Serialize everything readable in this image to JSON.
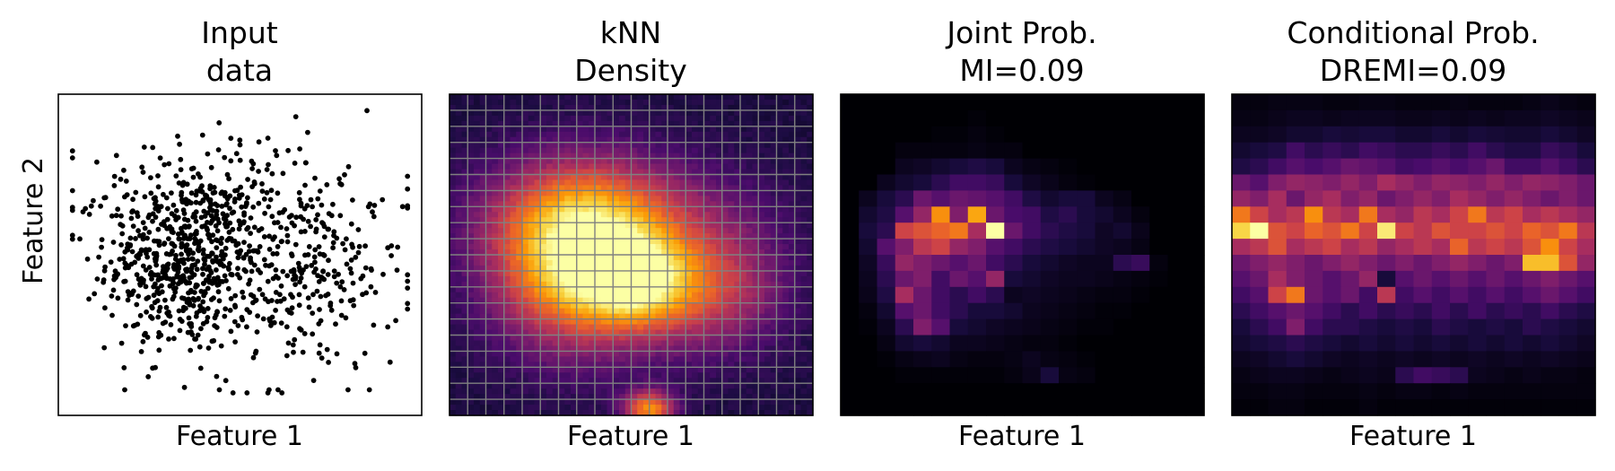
{
  "figure": {
    "y_axis_label": "Feature 2",
    "colormap": [
      "#000004",
      "#1b0c41",
      "#4a0c6b",
      "#781c6d",
      "#a52c60",
      "#cf4446",
      "#ed6925",
      "#fb9b06",
      "#f7d13d",
      "#fcffa4"
    ],
    "grid_color": "#808080"
  },
  "chart_data": [
    {
      "type": "scatter",
      "title_lines": [
        "Input",
        "data"
      ],
      "xlabel": "Feature 1",
      "ylabel": "Feature 2",
      "grid": false,
      "ticks": false,
      "point_color": "#000000",
      "point_count": 1000,
      "xlim": [
        0,
        100
      ],
      "ylim": [
        0,
        100
      ],
      "clusters": [
        {
          "weight": 0.6,
          "center": [
            34,
            48
          ],
          "spread": [
            11,
            15
          ]
        },
        {
          "weight": 0.25,
          "center": [
            68,
            42
          ],
          "spread": [
            14,
            15
          ]
        },
        {
          "weight": 0.15,
          "center": [
            50,
            68
          ],
          "spread": [
            22,
            12
          ]
        }
      ],
      "highlight_points": [
        [
          44,
          93
        ],
        [
          66,
          95
        ],
        [
          58,
          88
        ],
        [
          95,
          45
        ],
        [
          93,
          15
        ],
        [
          5,
          64
        ],
        [
          48,
          5
        ],
        [
          52,
          5
        ],
        [
          58,
          5
        ],
        [
          62,
          5
        ]
      ]
    },
    {
      "type": "heatmap",
      "title_lines": [
        "kNN",
        "Density"
      ],
      "xlabel": "Feature 1",
      "grid": true,
      "grid_cells": 20,
      "resolution": 60,
      "values_max": 1.0,
      "density_blobs": [
        {
          "center": [
            0.35,
            0.48
          ],
          "spread": [
            0.16,
            0.18
          ],
          "amplitude": 0.95
        },
        {
          "center": [
            0.52,
            0.42
          ],
          "spread": [
            0.1,
            0.1
          ],
          "amplitude": 0.55
        },
        {
          "center": [
            0.72,
            0.4
          ],
          "spread": [
            0.14,
            0.14
          ],
          "amplitude": 0.45
        },
        {
          "center": [
            0.45,
            0.65
          ],
          "spread": [
            0.25,
            0.12
          ],
          "amplitude": 0.3
        },
        {
          "center": [
            0.55,
            0.02
          ],
          "spread": [
            0.05,
            0.04
          ],
          "amplitude": 0.7
        }
      ],
      "background_level": 0.12
    },
    {
      "type": "heatmap",
      "title_lines": [
        "Joint Prob.",
        "MI=0.09"
      ],
      "xlabel": "Feature 1",
      "grid": false,
      "grid_cells": 20,
      "values_max": 1.0,
      "values": [
        [
          0.0,
          0.0,
          0.0,
          0.0,
          0.0,
          0.0,
          0.0,
          0.0,
          0.0,
          0.0,
          0.0,
          0.0,
          0.0,
          0.0,
          0.0,
          0.0,
          0.0,
          0.0,
          0.0,
          0.0
        ],
        [
          0.0,
          0.0,
          0.0,
          0.0,
          0.0,
          0.0,
          0.0,
          0.01,
          0.0,
          0.0,
          0.0,
          0.0,
          0.0,
          0.0,
          0.0,
          0.0,
          0.0,
          0.0,
          0.0,
          0.0
        ],
        [
          0.0,
          0.0,
          0.0,
          0.0,
          0.0,
          0.01,
          0.01,
          0.02,
          0.01,
          0.0,
          0.0,
          0.0,
          0.0,
          0.0,
          0.0,
          0.0,
          0.0,
          0.0,
          0.0,
          0.0
        ],
        [
          0.0,
          0.0,
          0.0,
          0.02,
          0.02,
          0.02,
          0.02,
          0.03,
          0.02,
          0.02,
          0.0,
          0.0,
          0.0,
          0.0,
          0.0,
          0.0,
          0.0,
          0.0,
          0.0,
          0.0
        ],
        [
          0.0,
          0.0,
          0.0,
          0.05,
          0.06,
          0.08,
          0.1,
          0.12,
          0.1,
          0.05,
          0.03,
          0.02,
          0.01,
          0.0,
          0.0,
          0.0,
          0.0,
          0.0,
          0.0,
          0.0
        ],
        [
          0.0,
          0.0,
          0.05,
          0.08,
          0.1,
          0.15,
          0.2,
          0.2,
          0.18,
          0.1,
          0.06,
          0.04,
          0.02,
          0.01,
          0.0,
          0.0,
          0.0,
          0.0,
          0.0,
          0.0
        ],
        [
          0.0,
          0.05,
          0.1,
          0.15,
          0.3,
          0.25,
          0.3,
          0.28,
          0.25,
          0.2,
          0.12,
          0.08,
          0.1,
          0.1,
          0.05,
          0.03,
          0.0,
          0.0,
          0.0,
          0.0
        ],
        [
          0.0,
          0.08,
          0.12,
          0.25,
          0.4,
          0.75,
          0.35,
          0.8,
          0.3,
          0.22,
          0.2,
          0.12,
          0.15,
          0.1,
          0.08,
          0.05,
          0.02,
          0.0,
          0.0,
          0.0
        ],
        [
          0.0,
          0.1,
          0.15,
          0.55,
          0.6,
          0.65,
          0.7,
          0.45,
          1.0,
          0.3,
          0.2,
          0.15,
          0.12,
          0.1,
          0.06,
          0.08,
          0.04,
          0.0,
          0.0,
          0.0
        ],
        [
          0.0,
          0.08,
          0.25,
          0.35,
          0.5,
          0.55,
          0.4,
          0.35,
          0.25,
          0.2,
          0.15,
          0.12,
          0.1,
          0.08,
          0.06,
          0.05,
          0.03,
          0.0,
          0.0,
          0.0
        ],
        [
          0.0,
          0.06,
          0.18,
          0.4,
          0.35,
          0.3,
          0.25,
          0.3,
          0.2,
          0.15,
          0.1,
          0.08,
          0.06,
          0.05,
          0.05,
          0.15,
          0.18,
          0.02,
          0.0,
          0.0
        ],
        [
          0.0,
          0.05,
          0.15,
          0.3,
          0.35,
          0.2,
          0.3,
          0.25,
          0.4,
          0.1,
          0.08,
          0.06,
          0.05,
          0.05,
          0.04,
          0.03,
          0.02,
          0.01,
          0.0,
          0.0
        ],
        [
          0.0,
          0.04,
          0.12,
          0.45,
          0.3,
          0.2,
          0.15,
          0.2,
          0.15,
          0.05,
          0.06,
          0.05,
          0.04,
          0.03,
          0.02,
          0.02,
          0.01,
          0.0,
          0.0,
          0.0
        ],
        [
          0.0,
          0.02,
          0.08,
          0.25,
          0.3,
          0.2,
          0.15,
          0.1,
          0.1,
          0.08,
          0.05,
          0.04,
          0.03,
          0.02,
          0.01,
          0.01,
          0.0,
          0.0,
          0.0,
          0.0
        ],
        [
          0.0,
          0.01,
          0.05,
          0.15,
          0.35,
          0.25,
          0.1,
          0.08,
          0.06,
          0.05,
          0.04,
          0.03,
          0.02,
          0.01,
          0.01,
          0.0,
          0.0,
          0.0,
          0.0,
          0.0
        ],
        [
          0.0,
          0.0,
          0.03,
          0.08,
          0.1,
          0.08,
          0.05,
          0.05,
          0.04,
          0.03,
          0.02,
          0.02,
          0.01,
          0.0,
          0.0,
          0.0,
          0.0,
          0.0,
          0.0,
          0.0
        ],
        [
          0.0,
          0.0,
          0.01,
          0.03,
          0.04,
          0.05,
          0.03,
          0.02,
          0.02,
          0.03,
          0.05,
          0.03,
          0.02,
          0.01,
          0.0,
          0.0,
          0.0,
          0.0,
          0.0,
          0.0
        ],
        [
          0.0,
          0.0,
          0.0,
          0.01,
          0.01,
          0.01,
          0.01,
          0.01,
          0.01,
          0.02,
          0.04,
          0.1,
          0.03,
          0.02,
          0.0,
          0.0,
          0.0,
          0.0,
          0.0,
          0.0
        ],
        [
          0.0,
          0.0,
          0.0,
          0.0,
          0.0,
          0.0,
          0.0,
          0.0,
          0.0,
          0.0,
          0.0,
          0.0,
          0.0,
          0.0,
          0.0,
          0.0,
          0.0,
          0.0,
          0.0,
          0.0
        ],
        [
          0.0,
          0.0,
          0.0,
          0.0,
          0.0,
          0.0,
          0.0,
          0.0,
          0.0,
          0.0,
          0.0,
          0.0,
          0.0,
          0.0,
          0.0,
          0.0,
          0.0,
          0.0,
          0.0,
          0.0
        ]
      ]
    },
    {
      "type": "heatmap",
      "title_lines": [
        "Conditional Prob.",
        "DREMI=0.09"
      ],
      "xlabel": "Feature 1",
      "grid": false,
      "grid_cells": 20,
      "values_max": 1.0,
      "values": [
        [
          0.02,
          0.02,
          0.03,
          0.03,
          0.03,
          0.02,
          0.02,
          0.03,
          0.03,
          0.02,
          0.02,
          0.02,
          0.03,
          0.02,
          0.02,
          0.02,
          0.03,
          0.04,
          0.03,
          0.02
        ],
        [
          0.03,
          0.03,
          0.04,
          0.05,
          0.05,
          0.04,
          0.05,
          0.05,
          0.05,
          0.04,
          0.04,
          0.05,
          0.04,
          0.05,
          0.04,
          0.05,
          0.05,
          0.06,
          0.05,
          0.04
        ],
        [
          0.05,
          0.05,
          0.06,
          0.08,
          0.08,
          0.1,
          0.09,
          0.1,
          0.1,
          0.08,
          0.08,
          0.1,
          0.08,
          0.1,
          0.09,
          0.08,
          0.08,
          0.1,
          0.08,
          0.06
        ],
        [
          0.08,
          0.1,
          0.12,
          0.2,
          0.15,
          0.18,
          0.15,
          0.2,
          0.18,
          0.15,
          0.15,
          0.18,
          0.15,
          0.2,
          0.15,
          0.12,
          0.12,
          0.18,
          0.15,
          0.1
        ],
        [
          0.12,
          0.15,
          0.2,
          0.25,
          0.22,
          0.25,
          0.3,
          0.28,
          0.25,
          0.2,
          0.22,
          0.25,
          0.22,
          0.25,
          0.3,
          0.2,
          0.2,
          0.25,
          0.2,
          0.15
        ],
        [
          0.3,
          0.25,
          0.35,
          0.4,
          0.38,
          0.35,
          0.4,
          0.35,
          0.45,
          0.4,
          0.35,
          0.4,
          0.38,
          0.35,
          0.4,
          0.35,
          0.4,
          0.38,
          0.35,
          0.3
        ],
        [
          0.4,
          0.35,
          0.45,
          0.3,
          0.4,
          0.45,
          0.35,
          0.4,
          0.3,
          0.35,
          0.4,
          0.35,
          0.45,
          0.4,
          0.35,
          0.4,
          0.35,
          0.3,
          0.35,
          0.3
        ],
        [
          0.7,
          0.55,
          0.45,
          0.5,
          0.75,
          0.5,
          0.45,
          0.7,
          0.45,
          0.4,
          0.5,
          0.45,
          0.55,
          0.7,
          0.5,
          0.55,
          0.45,
          0.5,
          0.45,
          0.4
        ],
        [
          0.9,
          1.0,
          0.6,
          0.55,
          0.65,
          0.6,
          0.7,
          0.55,
          0.95,
          0.55,
          0.5,
          0.6,
          0.55,
          0.55,
          0.6,
          0.55,
          0.65,
          0.6,
          0.7,
          0.5
        ],
        [
          0.45,
          0.5,
          0.6,
          0.45,
          0.5,
          0.55,
          0.45,
          0.5,
          0.4,
          0.45,
          0.5,
          0.45,
          0.65,
          0.5,
          0.55,
          0.5,
          0.6,
          0.75,
          0.55,
          0.45
        ],
        [
          0.3,
          0.35,
          0.4,
          0.35,
          0.3,
          0.35,
          0.4,
          0.35,
          0.3,
          0.35,
          0.3,
          0.35,
          0.4,
          0.35,
          0.3,
          0.35,
          0.85,
          0.85,
          0.6,
          0.4
        ],
        [
          0.25,
          0.3,
          0.45,
          0.35,
          0.3,
          0.25,
          0.3,
          0.4,
          0.1,
          0.25,
          0.3,
          0.25,
          0.3,
          0.25,
          0.3,
          0.25,
          0.3,
          0.35,
          0.3,
          0.25
        ],
        [
          0.2,
          0.25,
          0.55,
          0.7,
          0.3,
          0.25,
          0.3,
          0.2,
          0.5,
          0.2,
          0.25,
          0.2,
          0.25,
          0.2,
          0.25,
          0.2,
          0.25,
          0.3,
          0.25,
          0.2
        ],
        [
          0.15,
          0.2,
          0.25,
          0.3,
          0.25,
          0.2,
          0.15,
          0.2,
          0.15,
          0.18,
          0.15,
          0.2,
          0.15,
          0.2,
          0.15,
          0.18,
          0.15,
          0.2,
          0.15,
          0.12
        ],
        [
          0.1,
          0.15,
          0.2,
          0.35,
          0.2,
          0.15,
          0.15,
          0.12,
          0.1,
          0.12,
          0.1,
          0.15,
          0.12,
          0.1,
          0.12,
          0.1,
          0.15,
          0.12,
          0.1,
          0.08
        ],
        [
          0.08,
          0.1,
          0.12,
          0.15,
          0.12,
          0.1,
          0.08,
          0.1,
          0.08,
          0.1,
          0.08,
          0.1,
          0.08,
          0.1,
          0.08,
          0.1,
          0.08,
          0.1,
          0.08,
          0.06
        ],
        [
          0.05,
          0.06,
          0.08,
          0.1,
          0.08,
          0.06,
          0.05,
          0.06,
          0.05,
          0.06,
          0.05,
          0.06,
          0.05,
          0.06,
          0.05,
          0.06,
          0.05,
          0.06,
          0.05,
          0.04
        ],
        [
          0.03,
          0.04,
          0.05,
          0.05,
          0.04,
          0.03,
          0.04,
          0.05,
          0.04,
          0.15,
          0.2,
          0.18,
          0.15,
          0.05,
          0.04,
          0.03,
          0.04,
          0.03,
          0.03,
          0.02
        ],
        [
          0.02,
          0.02,
          0.03,
          0.03,
          0.02,
          0.02,
          0.02,
          0.03,
          0.02,
          0.03,
          0.03,
          0.02,
          0.03,
          0.02,
          0.02,
          0.02,
          0.02,
          0.02,
          0.02,
          0.02
        ],
        [
          0.01,
          0.01,
          0.02,
          0.02,
          0.01,
          0.01,
          0.01,
          0.02,
          0.01,
          0.01,
          0.01,
          0.01,
          0.01,
          0.01,
          0.01,
          0.01,
          0.01,
          0.01,
          0.01,
          0.01
        ]
      ]
    }
  ]
}
